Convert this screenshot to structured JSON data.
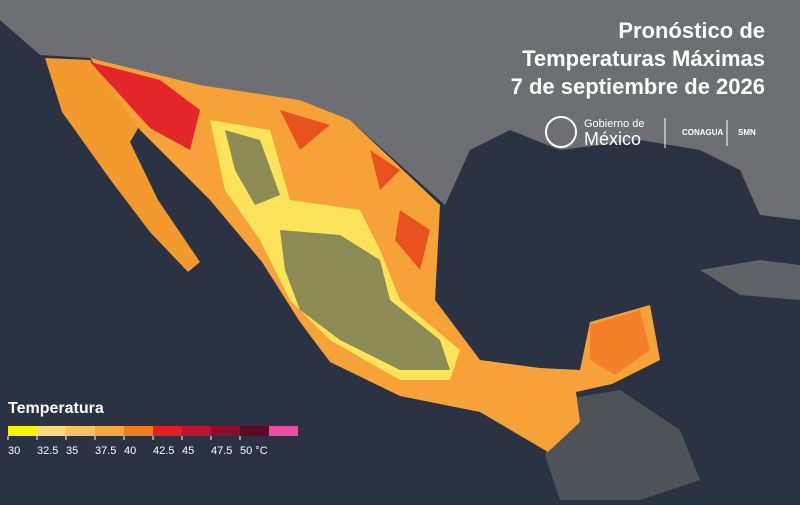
{
  "header": {
    "title": [
      "Pronóstico de",
      "Temperaturas Máximas",
      "7 de septiembre de 2026"
    ]
  },
  "logos": {
    "gobierno": "Gobierno de",
    "mexico": "México",
    "conagua": "CONAGUA",
    "smn": "SMN"
  },
  "legend": {
    "title": "Temperatura",
    "ticks": [
      30,
      32.5,
      35,
      37.5,
      40,
      42.5,
      45,
      47.5,
      {
        "value": 50,
        "label": "50 °C"
      }
    ],
    "colors": [
      "#f5f20a",
      "#fbd77e",
      "#f9bf62",
      "#f7a63a",
      "#f27c1c",
      "#e51e24",
      "#c0132d",
      "#8e0c2e",
      "#5e0a25",
      "#f04ba8"
    ]
  }
}
